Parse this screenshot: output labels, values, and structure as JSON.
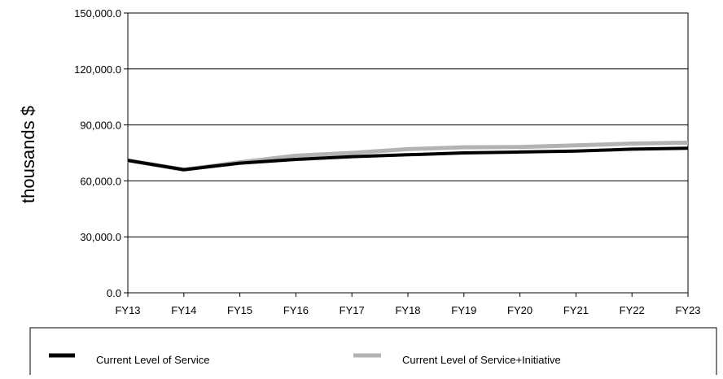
{
  "chart_data": {
    "type": "line",
    "ylabel": "thousands $",
    "xlabel": "",
    "title": "",
    "ylim": [
      0,
      150000
    ],
    "y_ticks": [
      "0.0",
      "30,000.0",
      "60,000.0",
      "90,000.0",
      "120,000.0",
      "150,000.0"
    ],
    "y_tick_values": [
      0,
      30000,
      60000,
      90000,
      120000,
      150000
    ],
    "categories": [
      "FY13",
      "FY14",
      "FY15",
      "FY16",
      "FY17",
      "FY18",
      "FY19",
      "FY20",
      "FY21",
      "FY22",
      "FY23"
    ],
    "grid": "horizontal",
    "legend_position": "bottom",
    "series": [
      {
        "name": "Current Level of Service+Initiative",
        "color": "#b3b3b3",
        "values": [
          71000,
          66000,
          70000,
          73500,
          75000,
          77000,
          78000,
          78200,
          79000,
          80000,
          80500
        ]
      },
      {
        "name": "Current Level of Service",
        "color": "#000000",
        "values": [
          71000,
          66000,
          69500,
          71500,
          73000,
          74000,
          75000,
          75500,
          76000,
          77000,
          77500
        ]
      }
    ],
    "legend": [
      {
        "label": "Current Level of Service",
        "color": "#000000"
      },
      {
        "label": "Current Level of Service+Initiative",
        "color": "#b3b3b3"
      }
    ]
  }
}
